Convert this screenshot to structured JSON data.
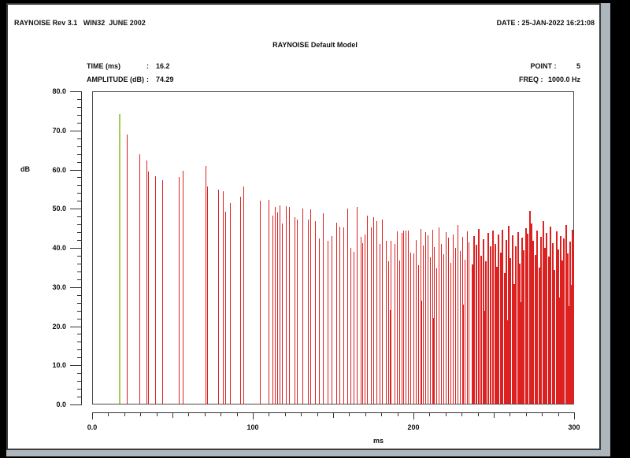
{
  "window": {
    "header_left": "RAYNOISE Rev 3.1   WIN32  JUNE 2002",
    "header_right": "DATE : 25-JAN-2022 16:21:08",
    "title": "RAYNOISE Default Model",
    "info": {
      "time_label": "TIME (ms)",
      "time_value": "16.2",
      "amplitude_label": "AMPLITUDE (dB)",
      "amplitude_value": "74.29",
      "point_label": "POINT",
      "point_value": "5",
      "freq_label": "FREQ",
      "freq_value": "1000.0 Hz"
    }
  },
  "chart_data": {
    "type": "bar",
    "subtype": "impulse-response-echogram",
    "title": "RAYNOISE Default Model",
    "xlabel": "ms",
    "ylabel": "dB",
    "xlim": [
      0,
      300
    ],
    "ylim": [
      0,
      80
    ],
    "grid": false,
    "x_major_ticks": [
      0,
      100,
      200,
      300
    ],
    "x_tick_labels": [
      "0.0",
      "100",
      "200",
      "300"
    ],
    "x_minor_step": 10,
    "x_medium_step": 50,
    "y_major_ticks": [
      0,
      10,
      20,
      30,
      40,
      50,
      60,
      70,
      80
    ],
    "y_tick_labels": [
      "0.0",
      "10.0",
      "20.0",
      "30.0",
      "40.0",
      "50.0",
      "60.0",
      "70.0",
      "80.0"
    ],
    "y_minor_step": 2,
    "colors": {
      "spike": "#dd2121",
      "marked": "#a9cb52",
      "axis": "#333333"
    },
    "marked_point": {
      "time_ms": 16.2,
      "amplitude_db": 74.29
    },
    "spikes": [
      [
        21.2,
        69.2
      ],
      [
        28.8,
        64.0
      ],
      [
        33.4,
        62.4
      ],
      [
        34.3,
        59.7
      ],
      [
        38.6,
        58.4
      ],
      [
        43.3,
        57.4
      ],
      [
        53.8,
        58.1
      ],
      [
        56.0,
        59.9
      ],
      [
        70.1,
        61.0
      ],
      [
        71.2,
        55.7
      ],
      [
        78.3,
        54.9
      ],
      [
        81.0,
        54.5
      ],
      [
        82.8,
        49.4
      ],
      [
        85.6,
        51.5
      ],
      [
        91.7,
        53.2
      ],
      [
        93.8,
        55.8
      ],
      [
        104.1,
        52.2
      ],
      [
        109.6,
        52.4
      ],
      [
        112.1,
        48.2
      ],
      [
        113.4,
        50.5
      ],
      [
        115.3,
        49.0
      ],
      [
        116.5,
        50.9
      ],
      [
        118.0,
        46.2
      ],
      [
        120.7,
        50.7
      ],
      [
        122.4,
        50.6
      ],
      [
        126.1,
        47.8
      ],
      [
        127.3,
        47.3
      ],
      [
        131.0,
        50.2
      ],
      [
        134.2,
        47.2
      ],
      [
        135.8,
        49.9
      ],
      [
        138.7,
        46.8
      ],
      [
        141.3,
        42.5
      ],
      [
        143.6,
        48.9
      ],
      [
        146.6,
        41.8
      ],
      [
        149.0,
        43.0
      ],
      [
        151.8,
        46.5
      ],
      [
        153.9,
        45.5
      ],
      [
        156.4,
        45.2
      ],
      [
        158.7,
        50.2
      ],
      [
        160.8,
        40.1
      ],
      [
        162.7,
        39.1
      ],
      [
        164.9,
        50.5
      ],
      [
        167.0,
        42.8
      ],
      [
        168.1,
        41.2
      ],
      [
        169.5,
        43.5
      ],
      [
        171.1,
        48.2
      ],
      [
        173.4,
        45.2
      ],
      [
        175.2,
        47.8
      ],
      [
        177.1,
        46.8
      ],
      [
        178.8,
        41.1
      ],
      [
        180.7,
        47.2
      ],
      [
        182.8,
        41.8
      ],
      [
        184.5,
        36.5
      ],
      [
        185.5,
        24.0
      ],
      [
        186.1,
        41.8
      ],
      [
        188.2,
        41.1
      ],
      [
        189.9,
        44.2
      ],
      [
        191.3,
        36.8
      ],
      [
        192.6,
        43.8
      ],
      [
        193.8,
        44.5
      ],
      [
        195.1,
        44.5
      ],
      [
        196.7,
        44.4
      ],
      [
        198.4,
        38.8
      ],
      [
        200.0,
        38.5
      ],
      [
        201.6,
        42.0
      ],
      [
        203.1,
        35.5
      ],
      [
        204.4,
        44.8
      ],
      [
        205.2,
        26.5
      ],
      [
        205.9,
        40.6
      ],
      [
        207.3,
        44.0
      ],
      [
        208.8,
        43.2
      ],
      [
        210.4,
        37.5
      ],
      [
        211.8,
        44.6
      ],
      [
        212.4,
        22.0
      ],
      [
        213.0,
        40.2
      ],
      [
        214.6,
        34.8
      ],
      [
        216.1,
        45.3
      ],
      [
        217.5,
        41.0
      ],
      [
        218.9,
        38.4
      ],
      [
        220.3,
        44.1
      ],
      [
        221.8,
        42.6
      ],
      [
        223.2,
        36.2
      ],
      [
        224.7,
        43.5
      ],
      [
        226.2,
        40.0
      ],
      [
        227.6,
        45.9
      ],
      [
        229.0,
        39.2
      ],
      [
        230.5,
        42.8
      ],
      [
        231.2,
        25.5
      ],
      [
        232.0,
        37.0
      ],
      [
        233.4,
        44.3
      ],
      [
        234.8,
        41.5
      ],
      [
        236.3,
        35.8
      ],
      [
        237.7,
        43.0
      ],
      [
        239.1,
        40.8
      ],
      [
        240.6,
        44.9
      ],
      [
        242.0,
        38.0
      ],
      [
        243.5,
        42.2
      ],
      [
        244.2,
        23.8
      ],
      [
        244.9,
        36.6
      ],
      [
        246.3,
        43.8
      ],
      [
        247.8,
        40.4
      ],
      [
        249.2,
        44.5
      ],
      [
        250.6,
        41.0
      ],
      [
        251.8,
        35.2
      ],
      [
        252.4,
        28.0
      ],
      [
        253.0,
        43.4
      ],
      [
        254.2,
        38.8
      ],
      [
        255.4,
        44.7
      ],
      [
        256.6,
        33.5
      ],
      [
        257.8,
        42.0
      ],
      [
        258.4,
        21.5
      ],
      [
        259.0,
        45.6
      ],
      [
        260.2,
        37.4
      ],
      [
        261.4,
        43.2
      ],
      [
        262.6,
        30.8
      ],
      [
        263.8,
        40.5
      ],
      [
        265.0,
        44.0
      ],
      [
        266.2,
        36.0
      ],
      [
        266.8,
        26.0
      ],
      [
        267.4,
        42.6
      ],
      [
        268.6,
        39.4
      ],
      [
        269.8,
        45.0
      ],
      [
        271.0,
        43.7
      ],
      [
        272.2,
        49.5
      ],
      [
        273.4,
        46.2
      ],
      [
        274.6,
        41.8
      ],
      [
        275.8,
        38.2
      ],
      [
        276.4,
        24.5
      ],
      [
        277.0,
        44.4
      ],
      [
        278.2,
        35.0
      ],
      [
        279.4,
        42.9
      ],
      [
        280.6,
        46.8
      ],
      [
        281.8,
        40.0
      ],
      [
        283.0,
        43.9
      ],
      [
        284.2,
        37.8
      ],
      [
        284.8,
        22.8
      ],
      [
        285.4,
        45.4
      ],
      [
        286.6,
        41.2
      ],
      [
        287.8,
        34.4
      ],
      [
        289.0,
        44.2
      ],
      [
        290.2,
        39.6
      ],
      [
        291.0,
        27.2
      ],
      [
        291.4,
        43.0
      ],
      [
        292.6,
        36.8
      ],
      [
        293.8,
        42.4
      ],
      [
        295.0,
        45.8
      ],
      [
        296.2,
        38.6
      ],
      [
        297.0,
        25.0
      ],
      [
        297.4,
        41.6
      ],
      [
        298.3,
        30.5
      ],
      [
        299.0,
        44.6
      ],
      [
        299.7,
        43.2
      ]
    ]
  }
}
